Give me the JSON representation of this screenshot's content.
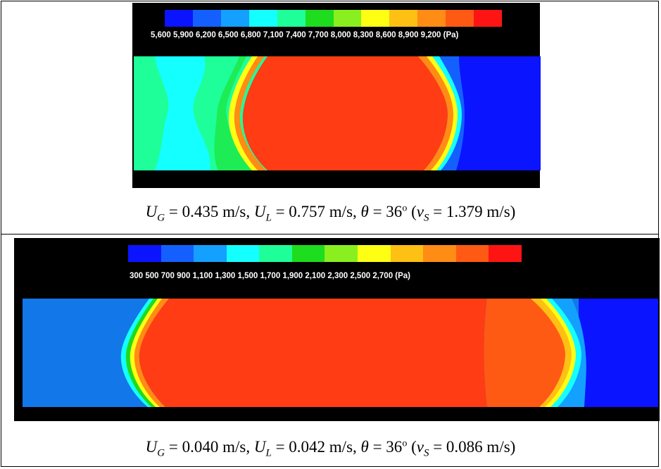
{
  "figure_a": {
    "colorbar": {
      "colors": [
        "#0a14ff",
        "#1460ff",
        "#14a0ff",
        "#14ffff",
        "#1eff9a",
        "#1edc1e",
        "#8aef1e",
        "#ffff14",
        "#ffc014",
        "#ff8c14",
        "#ff5a14",
        "#ff1414"
      ],
      "labels": "5,600 5,900 6,200 6,500 6,800 7,100 7,400 7,700 8,000 8,300 8,600 8,900 9,200 (Pa)"
    },
    "caption": {
      "ug_var": "U",
      "ug_sub": "G",
      "ug_value": " = 0.435 m/s, ",
      "ul_var": "U",
      "ul_sub": "L",
      "ul_value": " = 0.757 m/s, ",
      "theta_var": "θ",
      "theta_value": " = 36",
      "degree": "o",
      "vs_open": " (",
      "vs_var": "v",
      "vs_sub": "S",
      "vs_value": " = 1.379 m/s)"
    }
  },
  "figure_b": {
    "colorbar": {
      "colors": [
        "#0a14ff",
        "#1460ff",
        "#14a0ff",
        "#14ffff",
        "#1eff9a",
        "#1edc1e",
        "#8aef1e",
        "#ffff14",
        "#ffc014",
        "#ff8c14",
        "#ff5a14",
        "#ff1414"
      ],
      "labels": "300 500 700 900 1,100 1,300 1,500 1,700 1,900 2,100 2,300 2,500 2,700 (Pa)"
    },
    "caption": {
      "ug_var": "U",
      "ug_sub": "G",
      "ug_value": " = 0.040 m/s, ",
      "ul_var": "U",
      "ul_sub": "L",
      "ul_value": " = 0.042 m/s, ",
      "theta_var": "θ",
      "theta_value": " = 36",
      "degree": "o",
      "vs_open": " (",
      "vs_var": "v",
      "vs_sub": "S",
      "vs_value": " = 0.086 m/s)"
    }
  }
}
